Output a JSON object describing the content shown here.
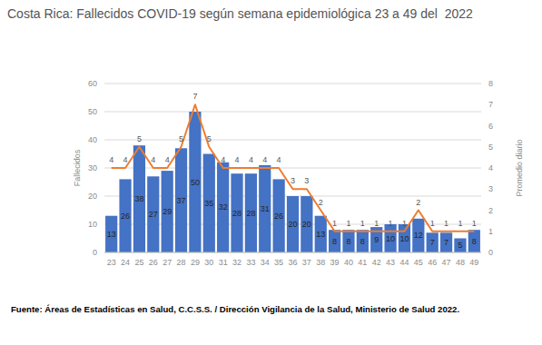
{
  "chart_data": {
    "type": "bar",
    "title": "Costa Rica: Fallecidos COVID-19 según semana epidemiológica 23 a 49 del  2022",
    "source": "Fuente: Áreas de Estadísticas en Salud, C.C.S.S. / Dirección Vigilancia de la Salud, Ministerio de Salud 2022.",
    "categories": [
      "23",
      "24",
      "25",
      "26",
      "27",
      "28",
      "29",
      "30",
      "31",
      "32",
      "33",
      "34",
      "35",
      "36",
      "37",
      "38",
      "39",
      "40",
      "41",
      "42",
      "43",
      "44",
      "45",
      "46",
      "47",
      "48",
      "49"
    ],
    "series": [
      {
        "name": "Fallecidos",
        "type": "bar",
        "color": "#4472c4",
        "values": [
          13,
          26,
          38,
          27,
          29,
          37,
          50,
          35,
          32,
          28,
          28,
          31,
          26,
          20,
          20,
          13,
          8,
          8,
          8,
          9,
          10,
          10,
          12,
          7,
          7,
          5,
          8
        ]
      },
      {
        "name": "Promedio diario",
        "type": "line",
        "axis": "y2",
        "color": "#ed7d31",
        "values": [
          4,
          4,
          5,
          4,
          4,
          5,
          7,
          5,
          4,
          4,
          4,
          4,
          4,
          3,
          3,
          2,
          1,
          1,
          1,
          1,
          1,
          1,
          2,
          1,
          1,
          1,
          1
        ]
      }
    ],
    "ylim": [
      0,
      60
    ],
    "yticks": [
      0,
      10,
      20,
      30,
      40,
      50,
      60
    ],
    "y2lim": [
      0,
      8
    ],
    "y2ticks": [
      0,
      1,
      2,
      3,
      4,
      5,
      6,
      7,
      8
    ],
    "grid": true,
    "data_labels": true
  }
}
